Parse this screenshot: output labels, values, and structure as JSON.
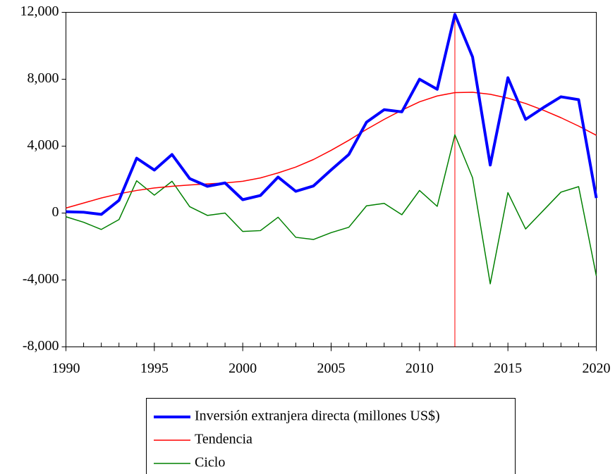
{
  "chart_data": {
    "type": "line",
    "x": [
      1990,
      1991,
      1992,
      1993,
      1994,
      1995,
      1996,
      1997,
      1998,
      1999,
      2000,
      2001,
      2002,
      2003,
      2004,
      2005,
      2006,
      2007,
      2008,
      2009,
      2010,
      2011,
      2012,
      2013,
      2014,
      2015,
      2016,
      2017,
      2018,
      2019,
      2020
    ],
    "series": [
      {
        "name": "Inversión extranjera directa (millones US$)",
        "color": "#0000ff",
        "width": 4,
        "values": [
          80,
          50,
          -80,
          760,
          3280,
          2570,
          3500,
          2060,
          1600,
          1800,
          800,
          1050,
          2150,
          1300,
          1620,
          2580,
          3500,
          5430,
          6180,
          6050,
          8000,
          7400,
          11880,
          9330,
          2870,
          8090,
          5600,
          6300,
          6950,
          6780,
          900
        ]
      },
      {
        "name": "Tendencia",
        "color": "#ff0000",
        "width": 1.5,
        "values": [
          300,
          600,
          900,
          1150,
          1350,
          1500,
          1600,
          1680,
          1740,
          1800,
          1900,
          2100,
          2400,
          2750,
          3200,
          3750,
          4350,
          5000,
          5600,
          6150,
          6650,
          7000,
          7200,
          7220,
          7100,
          6870,
          6550,
          6150,
          5700,
          5200,
          4650
        ]
      },
      {
        "name": "Ciclo",
        "color": "#008000",
        "width": 1.5,
        "values": [
          -220,
          -550,
          -980,
          -390,
          1930,
          1070,
          1900,
          380,
          -140,
          0,
          -1100,
          -1050,
          -250,
          -1450,
          -1580,
          -1170,
          -850,
          430,
          580,
          -100,
          1350,
          400,
          4680,
          2110,
          -4230,
          1220,
          -950,
          150,
          1250,
          1580,
          -3750
        ]
      }
    ],
    "xlim": [
      1990,
      2020
    ],
    "xticks": [
      1990,
      1995,
      2000,
      2005,
      2010,
      2015,
      2020
    ],
    "ylim": [
      -8000,
      12000
    ],
    "yticks": [
      {
        "value": -8000,
        "label": "-8,000"
      },
      {
        "value": -4000,
        "label": "-4,000"
      },
      0,
      {
        "value": 4000,
        "label": "4,000"
      },
      {
        "value": 8000,
        "label": "8,000"
      },
      {
        "value": 12000,
        "label": "12,000"
      }
    ],
    "vline": {
      "x": 2012,
      "color": "#ff0000"
    }
  }
}
